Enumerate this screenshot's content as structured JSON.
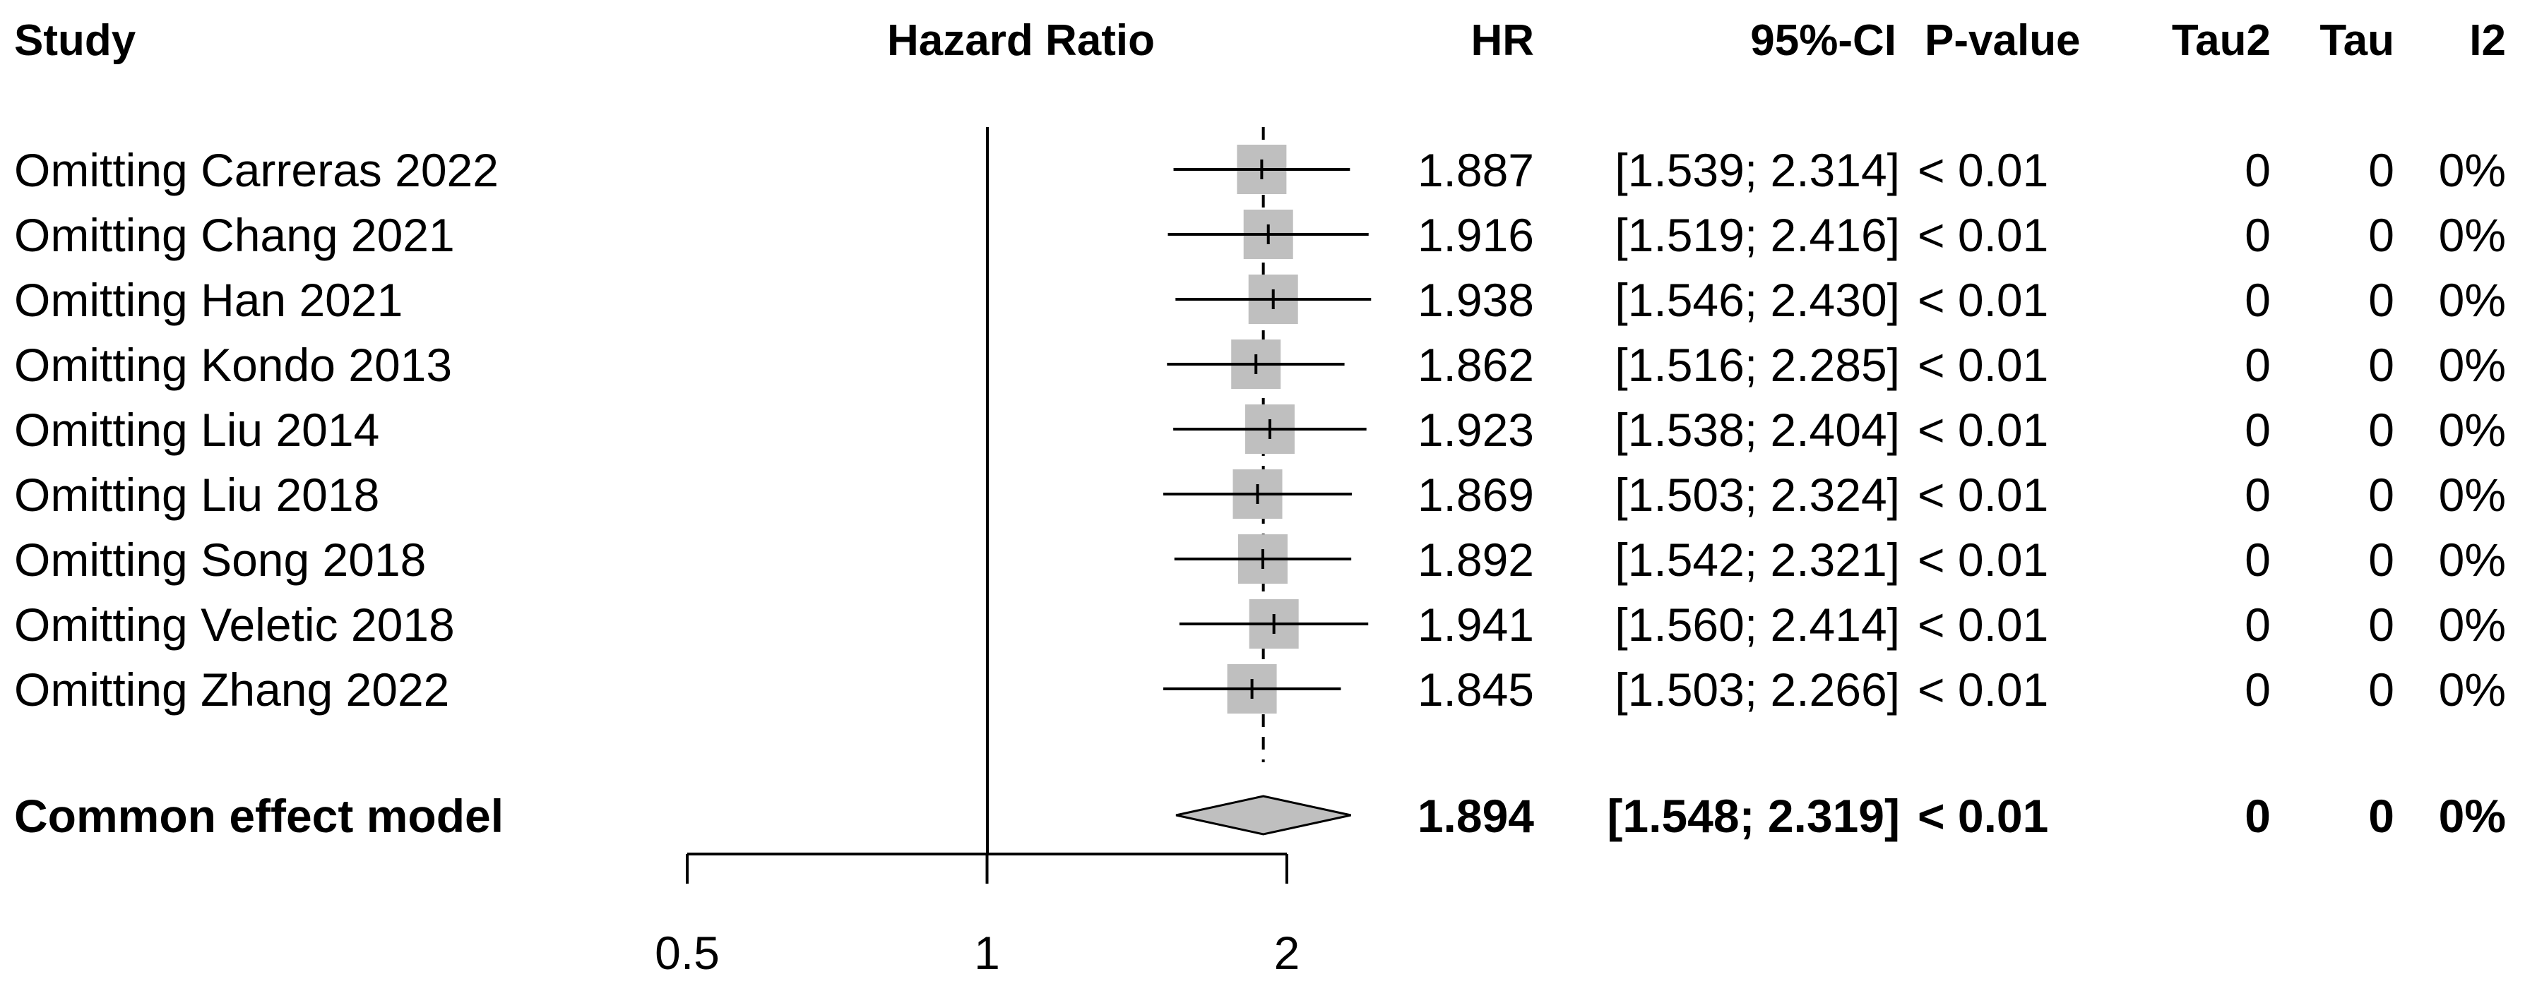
{
  "headers": {
    "study": "Study",
    "plot": "Hazard Ratio",
    "hr": "HR",
    "ci": "95%-CI",
    "pvalue": "P-value",
    "tau2": "Tau2",
    "tau": "Tau",
    "i2": "I2"
  },
  "chart_data": {
    "type": "forest",
    "xscale": "log",
    "xlim": [
      0.5,
      2.0
    ],
    "xticks": [
      "0.5",
      "1",
      "2"
    ],
    "xtick_values": [
      0.5,
      1,
      2
    ],
    "null_value": 1,
    "colors": {
      "box": "#bfbfbf",
      "diamond": "#bfbfbf",
      "lines": "#000000"
    },
    "studies": [
      {
        "label": "Omitting Carreras 2022",
        "hr": 1.887,
        "lower": 1.539,
        "upper": 2.314,
        "hr_text": "1.887",
        "ci_text": "[1.539; 2.314]",
        "p_text": "< 0.01",
        "tau2_text": "0",
        "tau_text": "0",
        "i2_text": "0%"
      },
      {
        "label": "Omitting Chang 2021",
        "hr": 1.916,
        "lower": 1.519,
        "upper": 2.416,
        "hr_text": "1.916",
        "ci_text": "[1.519; 2.416]",
        "p_text": "< 0.01",
        "tau2_text": "0",
        "tau_text": "0",
        "i2_text": "0%"
      },
      {
        "label": "Omitting Han 2021",
        "hr": 1.938,
        "lower": 1.546,
        "upper": 2.43,
        "hr_text": "1.938",
        "ci_text": "[1.546; 2.430]",
        "p_text": "< 0.01",
        "tau2_text": "0",
        "tau_text": "0",
        "i2_text": "0%"
      },
      {
        "label": "Omitting Kondo 2013",
        "hr": 1.862,
        "lower": 1.516,
        "upper": 2.285,
        "hr_text": "1.862",
        "ci_text": "[1.516; 2.285]",
        "p_text": "< 0.01",
        "tau2_text": "0",
        "tau_text": "0",
        "i2_text": "0%"
      },
      {
        "label": "Omitting Liu 2014",
        "hr": 1.923,
        "lower": 1.538,
        "upper": 2.404,
        "hr_text": "1.923",
        "ci_text": "[1.538; 2.404]",
        "p_text": "< 0.01",
        "tau2_text": "0",
        "tau_text": "0",
        "i2_text": "0%"
      },
      {
        "label": "Omitting Liu 2018",
        "hr": 1.869,
        "lower": 1.503,
        "upper": 2.324,
        "hr_text": "1.869",
        "ci_text": "[1.503; 2.324]",
        "p_text": "< 0.01",
        "tau2_text": "0",
        "tau_text": "0",
        "i2_text": "0%"
      },
      {
        "label": "Omitting Song 2018",
        "hr": 1.892,
        "lower": 1.542,
        "upper": 2.321,
        "hr_text": "1.892",
        "ci_text": "[1.542; 2.321]",
        "p_text": "< 0.01",
        "tau2_text": "0",
        "tau_text": "0",
        "i2_text": "0%"
      },
      {
        "label": "Omitting Veletic 2018",
        "hr": 1.941,
        "lower": 1.56,
        "upper": 2.414,
        "hr_text": "1.941",
        "ci_text": "[1.560; 2.414]",
        "p_text": "< 0.01",
        "tau2_text": "0",
        "tau_text": "0",
        "i2_text": "0%"
      },
      {
        "label": "Omitting Zhang 2022",
        "hr": 1.845,
        "lower": 1.503,
        "upper": 2.266,
        "hr_text": "1.845",
        "ci_text": "[1.503; 2.266]",
        "p_text": "< 0.01",
        "tau2_text": "0",
        "tau_text": "0",
        "i2_text": "0%"
      }
    ],
    "summary": {
      "label": "Common effect model",
      "hr": 1.894,
      "lower": 1.548,
      "upper": 2.319,
      "hr_text": "1.894",
      "ci_text": "[1.548; 2.319]",
      "p_text": "< 0.01",
      "tau2_text": "0",
      "tau_text": "0",
      "i2_text": "0%"
    }
  }
}
